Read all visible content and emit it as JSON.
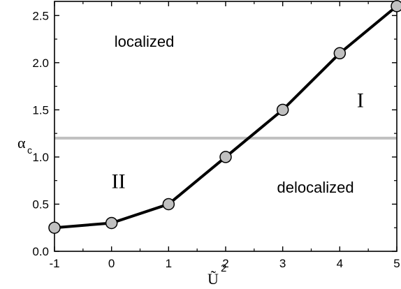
{
  "chart_data": {
    "type": "line",
    "x": [
      -1,
      0,
      1,
      2,
      3,
      4,
      5
    ],
    "series": [
      {
        "values": [
          0.25,
          0.3,
          0.5,
          1.0,
          1.5,
          2.1,
          2.6
        ]
      }
    ],
    "reference_line": {
      "y": 1.2,
      "color": "#c0c0c0"
    },
    "xlim": [
      -1,
      5
    ],
    "ylim": [
      0.0,
      2.65
    ],
    "xticks": [
      -1,
      0,
      1,
      2,
      3,
      4,
      5
    ],
    "yticks": [
      0.0,
      0.5,
      1.0,
      1.5,
      2.0,
      2.5
    ],
    "xtick_labels": [
      "-1",
      "0",
      "1",
      "2",
      "3",
      "4",
      "5"
    ],
    "ytick_labels": [
      "0.0",
      "0.5",
      "1.0",
      "1.5",
      "2.0",
      "2.5"
    ],
    "xlabel": {
      "symbol": "Ũ",
      "superscript": "2"
    },
    "ylabel": {
      "symbol": "α",
      "subscript": "c"
    },
    "annotations": [
      {
        "text": "localized",
        "x": 0.05,
        "y": 2.17,
        "style": "sans"
      },
      {
        "text": "delocalized",
        "x": 2.9,
        "y": 0.62,
        "style": "sans"
      },
      {
        "text": "I",
        "x": 4.3,
        "y": 1.53,
        "style": "serif"
      },
      {
        "text": "II",
        "x": 0.0,
        "y": 0.67,
        "style": "serif"
      }
    ],
    "grid": false,
    "legend": "none",
    "colors": {
      "line": "#000000",
      "marker_fill": "#c0c0c0",
      "marker_stroke": "#000000"
    }
  }
}
